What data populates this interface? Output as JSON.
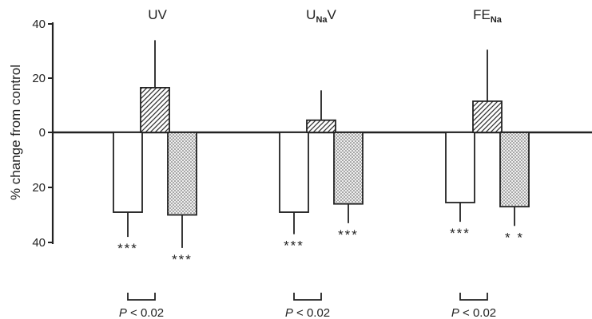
{
  "chart_data": {
    "type": "bar",
    "ylabel": "% change from control",
    "ylim": [
      -40,
      40
    ],
    "yticks": [
      {
        "value": 40,
        "label": "40"
      },
      {
        "value": 20,
        "label": "20"
      },
      {
        "value": 0,
        "label": "0"
      },
      {
        "value": -20,
        "label": "20"
      },
      {
        "value": -40,
        "label": "40"
      }
    ],
    "grid": false,
    "legend": "none",
    "series_patterns": [
      "open",
      "hatched",
      "dotted"
    ],
    "groups": [
      {
        "label_main": "UV",
        "label_sub": "",
        "bars": [
          {
            "pattern": "open",
            "value": -29,
            "error": 9,
            "sig": "***"
          },
          {
            "pattern": "hatched",
            "value": 16.5,
            "error": 17.5,
            "sig": ""
          },
          {
            "pattern": "dotted",
            "value": -30,
            "error": 12,
            "sig": "***"
          }
        ],
        "p_label": "P < 0.02",
        "p_italic": "P",
        "p_rest": " < 0.02"
      },
      {
        "label_main": "U",
        "label_sub": "Na",
        "label_tail": "V",
        "bars": [
          {
            "pattern": "open",
            "value": -29,
            "error": 8,
            "sig": "***"
          },
          {
            "pattern": "hatched",
            "value": 4.5,
            "error": 11,
            "sig": ""
          },
          {
            "pattern": "dotted",
            "value": -26,
            "error": 7,
            "sig": "***"
          }
        ],
        "p_label": "P < 0.02",
        "p_italic": "P",
        "p_rest": " < 0.02"
      },
      {
        "label_main": "FE",
        "label_sub": "Na",
        "label_tail": "",
        "bars": [
          {
            "pattern": "open",
            "value": -25.5,
            "error": 7,
            "sig": "***"
          },
          {
            "pattern": "hatched",
            "value": 11.5,
            "error": 19,
            "sig": ""
          },
          {
            "pattern": "dotted",
            "value": -27,
            "error": 7,
            "sig": "* *"
          }
        ],
        "p_label": "P < 0.02",
        "p_italic": "P",
        "p_rest": " < 0.02"
      }
    ]
  }
}
